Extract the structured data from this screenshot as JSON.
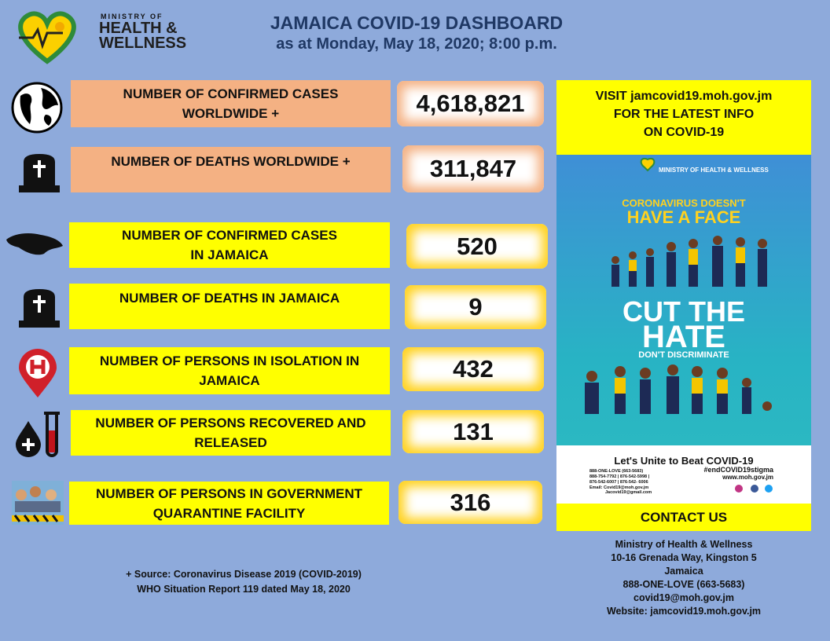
{
  "header": {
    "logo": {
      "line1": "MINISTRY OF",
      "line2": "HEALTH &",
      "line3": "WELLNESS"
    },
    "title": "JAMAICA COVID-19 DASHBOARD",
    "subtitle": "as at Monday, May 18, 2020; 8:00 p.m."
  },
  "stats": [
    {
      "label": [
        "NUMBER OF CONFIRMED CASES",
        "WORLDWIDE +"
      ],
      "value": "4,618,821"
    },
    {
      "label": [
        "NUMBER OF DEATHS WORLDWIDE +"
      ],
      "value": "311,847"
    },
    {
      "label": [
        "NUMBER OF CONFIRMED CASES",
        "IN JAMAICA"
      ],
      "value": "520"
    },
    {
      "label": [
        "NUMBER OF DEATHS IN JAMAICA"
      ],
      "value": "9"
    },
    {
      "label": [
        "NUMBER OF PERSONS IN ISOLATION IN",
        "JAMAICA"
      ],
      "value": "432"
    },
    {
      "label": [
        "NUMBER OF PERSONS RECOVERED AND",
        "RELEASED"
      ],
      "value": "131"
    },
    {
      "label": [
        "NUMBER OF PERSONS IN GOVERNMENT",
        "QUARANTINE FACILITY"
      ],
      "value": "316"
    }
  ],
  "source": [
    "+ Source: Coronavirus Disease 2019 (COVID-2019)",
    "WHO Situation Report 119 dated May 18, 2020"
  ],
  "visit": [
    "VISIT  jamcovid19.moh.gov.jm",
    "FOR THE LATEST INFO",
    "ON COVID-19"
  ],
  "poster": {
    "headline1": "CORONAVIRUS DOESN'T",
    "headline2": "HAVE A FACE",
    "cut1": "CUT THE",
    "cut2": "HATE",
    "cut3": "DON'T DISCRIMINATE",
    "unite": "Let's Unite to Beat COVID-19",
    "hashtag": "#endCOVID19stigma",
    "web": "www.moh.gov.jm",
    "phones": [
      "888-ONE-LOVE (663-5683)",
      "888-754-7792 | 876-542-5998 |",
      "876-542-6007 | 876-542- 6006"
    ],
    "email": [
      "Email: Covid19@moh.gov.jm",
      "Jacovid19@gmail.com"
    ]
  },
  "contact": {
    "heading": "CONTACT US",
    "lines": [
      "Ministry of Health & Wellness",
      "10-16 Grenada Way, Kingston 5",
      "Jamaica",
      "888-ONE-LOVE (663-5683)",
      "covid19@moh.gov.jm",
      "Website: jamcovid19.moh.gov.jm"
    ]
  }
}
